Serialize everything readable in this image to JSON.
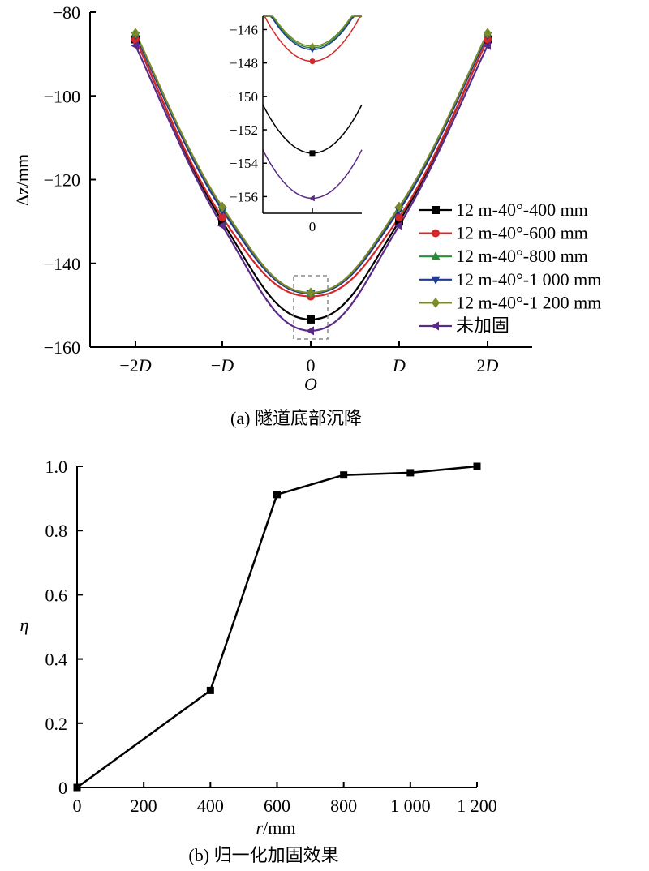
{
  "chart_data": [
    {
      "type": "line",
      "caption": "(a) 隧道底部沉降",
      "xlabel": "O",
      "ylabel": "Δz/mm",
      "ylim": [
        -160,
        -80
      ],
      "yticks": [
        "−80",
        "−100",
        "−120",
        "−140",
        "−160"
      ],
      "yticks_values": [
        -80,
        -100,
        -120,
        -140,
        -160
      ],
      "xticks": [
        "−2D",
        "−D",
        "0",
        "D",
        "2D"
      ],
      "x": [
        -2,
        -1,
        0,
        1,
        2
      ],
      "legend_position": "right",
      "series": [
        {
          "name": "12 m-40°-400 mm",
          "color": "#000000",
          "marker": "square",
          "values": [
            -86.5,
            -130.0,
            -153.4,
            -130.0,
            -86.5
          ]
        },
        {
          "name": "12 m-40°-600 mm",
          "color": "#d62728",
          "marker": "circle",
          "values": [
            -86.5,
            -129.0,
            -147.9,
            -129.0,
            -86.5
          ]
        },
        {
          "name": "12 m-40°-800 mm",
          "color": "#2e8b3a",
          "marker": "triangle-up",
          "values": [
            -85.0,
            -127.0,
            -147.1,
            -127.0,
            -85.0
          ]
        },
        {
          "name": "12 m-40°-1 000 mm",
          "color": "#1f3a93",
          "marker": "triangle-down",
          "values": [
            -85.5,
            -127.3,
            -147.2,
            -127.3,
            -85.5
          ]
        },
        {
          "name": "12 m-40°-1 200 mm",
          "color": "#7a8c2a",
          "marker": "diamond",
          "values": [
            -85.0,
            -126.5,
            -147.0,
            -126.5,
            -85.0
          ]
        },
        {
          "name": "未加固",
          "color": "#5b2a86",
          "marker": "triangle-left",
          "values": [
            -88.0,
            -131.0,
            -156.1,
            -131.0,
            -88.0
          ]
        }
      ],
      "inset": {
        "ylim": [
          -157,
          -145.2
        ],
        "yticks": [
          "−146",
          "−148",
          "−150",
          "−152",
          "−154",
          "−156"
        ],
        "yticks_values": [
          -146,
          -148,
          -150,
          -152,
          -154,
          -156
        ],
        "xtick": "0"
      }
    },
    {
      "type": "line",
      "caption": "(b) 归一化加固效果",
      "xlabel": "r/mm",
      "xlabel_var": "r",
      "xlabel_unit": "/mm",
      "ylabel": "η",
      "xlim": [
        0,
        1200
      ],
      "ylim": [
        0,
        1.0
      ],
      "xticks": [
        "0",
        "200",
        "400",
        "600",
        "800",
        "1 000",
        "1 200"
      ],
      "xticks_values": [
        0,
        200,
        400,
        600,
        800,
        1000,
        1200
      ],
      "yticks": [
        "0",
        "0.2",
        "0.4",
        "0.6",
        "0.8",
        "1.0"
      ],
      "yticks_values": [
        0,
        0.2,
        0.4,
        0.6,
        0.8,
        1.0
      ],
      "series": [
        {
          "color": "#000000",
          "marker": "square",
          "x": [
            0,
            400,
            600,
            800,
            1000,
            1200
          ],
          "values": [
            0,
            0.302,
            0.912,
            0.973,
            0.98,
            1.0
          ]
        }
      ]
    }
  ]
}
